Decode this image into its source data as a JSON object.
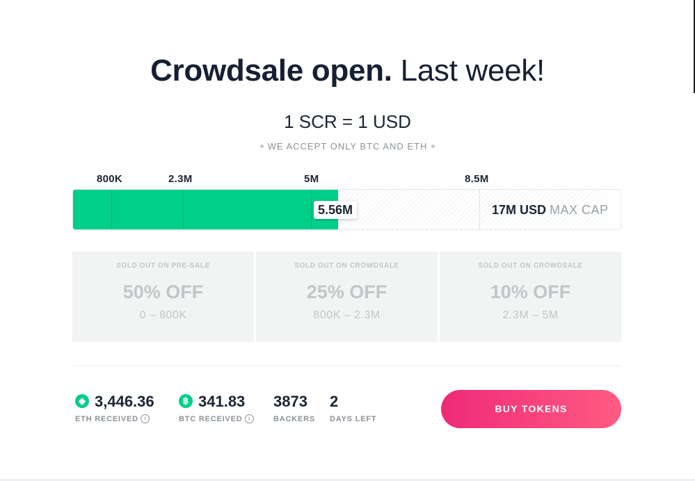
{
  "header": {
    "title_strong": "Crowdsale open.",
    "title_light": "Last week!",
    "rate": "1 SCR = 1 USD",
    "accept_note": "WE ACCEPT ONLY BTC AND ETH"
  },
  "progress": {
    "milestones": [
      "800K",
      "2.3M",
      "5M",
      "8.5M"
    ],
    "current_label": "5.56M",
    "current_value_millions": 5.56,
    "cap_value": "17M USD",
    "cap_label": "MAX CAP",
    "fill_color": "#00cf8a"
  },
  "tiers": [
    {
      "status": "SOLD OUT ON PRE-SALE",
      "discount": "50% OFF",
      "range": "0 – 800K"
    },
    {
      "status": "SOLD OUT ON CROWDSALE",
      "discount": "25% OFF",
      "range": "800K – 2.3M"
    },
    {
      "status": "SOLD OUT ON CROWDSALE",
      "discount": "10% OFF",
      "range": "2.3M – 5M"
    }
  ],
  "stats": {
    "eth": {
      "value": "3,446.36",
      "label": "ETH RECEIVED",
      "icon": "ethereum-icon"
    },
    "btc": {
      "value": "341.83",
      "label": "BTC RECEIVED",
      "icon": "bitcoin-icon"
    },
    "backers": {
      "value": "3873",
      "label": "BACKERS"
    },
    "days": {
      "value": "2",
      "label": "DAYS LEFT"
    }
  },
  "actions": {
    "buy_label": "BUY TOKENS",
    "buy_gradient": [
      "#ef2a78",
      "#ff5b82"
    ]
  }
}
